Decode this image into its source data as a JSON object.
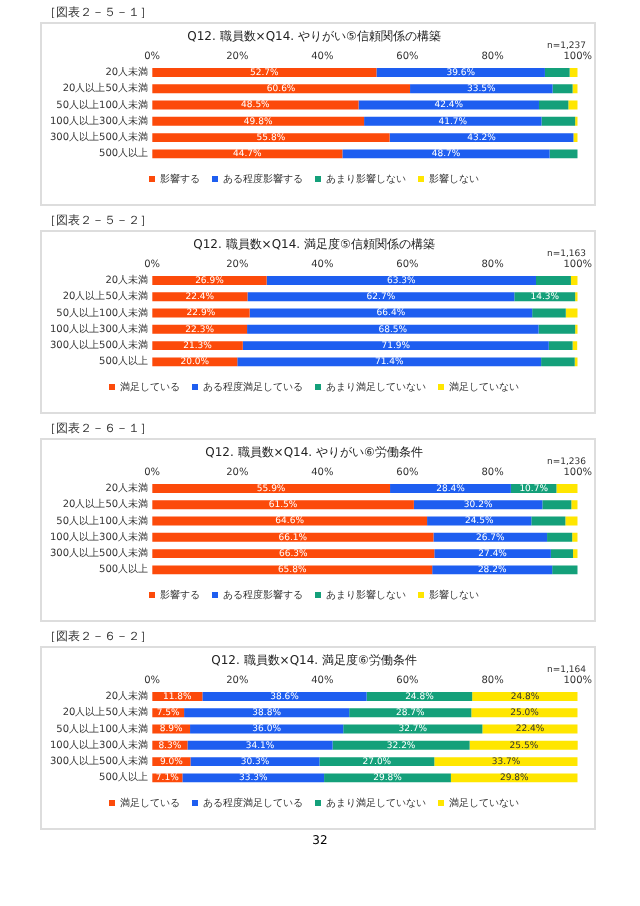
{
  "chart_data": [
    {
      "type": "bar",
      "orientation": "horizontal",
      "stacked": true,
      "title": "Q12. 職員数×Q14. やりがい⑤信頼関係の構築",
      "annotations": [
        "［図表２－５－１］",
        "n=1,237"
      ],
      "categories": [
        "20人未満",
        "20人以上50人未満",
        "50人以上100人未満",
        "100人以上300人未満",
        "300人以上500人未満",
        "500人以上"
      ],
      "xlim": [
        0,
        100
      ],
      "xticks": [
        {
          "value": 0,
          "label": "0%"
        },
        {
          "value": 20,
          "label": "20%"
        },
        {
          "value": 40,
          "label": "40%"
        },
        {
          "value": 60,
          "label": "60%"
        },
        {
          "value": 80,
          "label": "80%"
        },
        {
          "value": 100,
          "label": "100%"
        }
      ],
      "legend": "bottom",
      "series": [
        {
          "name": "影響する",
          "color": "#fc4a0a",
          "values": [
            52.7,
            60.6,
            48.5,
            49.8,
            55.8,
            44.7
          ],
          "value_labels": [
            "52.7%",
            "60.6%",
            "48.5%",
            "49.8%",
            "55.8%",
            "44.7%"
          ]
        },
        {
          "name": "ある程度影響する",
          "color": "#1e5ef0",
          "values": [
            39.6,
            33.5,
            42.4,
            41.7,
            43.2,
            48.7
          ],
          "value_labels": [
            "39.6%",
            "33.5%",
            "42.4%",
            "41.7%",
            "43.2%",
            "48.7%"
          ]
        },
        {
          "name": "あまり影響しない",
          "color": "#14a07a",
          "values": [
            5.8,
            4.7,
            6.9,
            7.9,
            0.0,
            6.6
          ],
          "value_labels": [
            null,
            null,
            null,
            null,
            null,
            null
          ]
        },
        {
          "name": "影響しない",
          "color": "#ffe600",
          "values": [
            1.9,
            1.2,
            2.2,
            0.6,
            1.0,
            0.0
          ],
          "value_labels": [
            null,
            null,
            null,
            null,
            null,
            null
          ]
        }
      ]
    },
    {
      "type": "bar",
      "orientation": "horizontal",
      "stacked": true,
      "title": "Q12. 職員数×Q14. 満足度⑤信頼関係の構築",
      "annotations": [
        "［図表２－５－２］",
        "n=1,163"
      ],
      "categories": [
        "20人未満",
        "20人以上50人未満",
        "50人以上100人未満",
        "100人以上300人未満",
        "300人以上500人未満",
        "500人以上"
      ],
      "xlim": [
        0,
        100
      ],
      "xticks": [
        {
          "value": 0,
          "label": "0%"
        },
        {
          "value": 20,
          "label": "20%"
        },
        {
          "value": 40,
          "label": "40%"
        },
        {
          "value": 60,
          "label": "60%"
        },
        {
          "value": 80,
          "label": "80%"
        },
        {
          "value": 100,
          "label": "100%"
        }
      ],
      "legend": "bottom",
      "series": [
        {
          "name": "満足している",
          "color": "#fc4a0a",
          "values": [
            26.9,
            22.4,
            22.9,
            22.3,
            21.3,
            20.0
          ],
          "value_labels": [
            "26.9%",
            "22.4%",
            "22.9%",
            "22.3%",
            "21.3%",
            "20.0%"
          ]
        },
        {
          "name": "ある程度満足している",
          "color": "#1e5ef0",
          "values": [
            63.3,
            62.7,
            66.4,
            68.5,
            71.9,
            71.4
          ],
          "value_labels": [
            "63.3%",
            "62.7%",
            "66.4%",
            "68.5%",
            "71.9%",
            "71.4%"
          ]
        },
        {
          "name": "あまり満足していない",
          "color": "#14a07a",
          "values": [
            8.2,
            14.3,
            7.9,
            8.6,
            5.6,
            7.9
          ],
          "value_labels": [
            null,
            "14.3%",
            null,
            null,
            null,
            null
          ]
        },
        {
          "name": "満足していない",
          "color": "#ffe600",
          "values": [
            1.6,
            0.6,
            2.8,
            0.6,
            1.1,
            0.7
          ],
          "value_labels": [
            null,
            null,
            null,
            null,
            null,
            null
          ]
        }
      ]
    },
    {
      "type": "bar",
      "orientation": "horizontal",
      "stacked": true,
      "title": "Q12. 職員数×Q14. やりがい⑥労働条件",
      "annotations": [
        "［図表２－６－１］",
        "n=1,236"
      ],
      "categories": [
        "20人未満",
        "20人以上50人未満",
        "50人以上100人未満",
        "100人以上300人未満",
        "300人以上500人未満",
        "500人以上"
      ],
      "xlim": [
        0,
        100
      ],
      "xticks": [
        {
          "value": 0,
          "label": "0%"
        },
        {
          "value": 20,
          "label": "20%"
        },
        {
          "value": 40,
          "label": "40%"
        },
        {
          "value": 60,
          "label": "60%"
        },
        {
          "value": 80,
          "label": "80%"
        },
        {
          "value": 100,
          "label": "100%"
        }
      ],
      "legend": "bottom",
      "series": [
        {
          "name": "影響する",
          "color": "#fc4a0a",
          "values": [
            55.9,
            61.5,
            64.6,
            66.1,
            66.3,
            65.8
          ],
          "value_labels": [
            "55.9%",
            "61.5%",
            "64.6%",
            "66.1%",
            "66.3%",
            "65.8%"
          ]
        },
        {
          "name": "ある程度影響する",
          "color": "#1e5ef0",
          "values": [
            28.4,
            30.2,
            24.5,
            26.7,
            27.4,
            28.2
          ],
          "value_labels": [
            "28.4%",
            "30.2%",
            "24.5%",
            "26.7%",
            "27.4%",
            "28.2%"
          ]
        },
        {
          "name": "あまり影響しない",
          "color": "#14a07a",
          "values": [
            10.7,
            6.8,
            8.0,
            5.9,
            5.2,
            6.0
          ],
          "value_labels": [
            "10.7%",
            null,
            null,
            null,
            null,
            null
          ]
        },
        {
          "name": "影響しない",
          "color": "#ffe600",
          "values": [
            5.0,
            1.5,
            2.9,
            1.3,
            1.1,
            0.0
          ],
          "value_labels": [
            null,
            null,
            null,
            null,
            null,
            null
          ]
        }
      ]
    },
    {
      "type": "bar",
      "orientation": "horizontal",
      "stacked": true,
      "title": "Q12. 職員数×Q14. 満足度⑥労働条件",
      "annotations": [
        "［図表２－６－２］",
        "n=1,164",
        "32"
      ],
      "categories": [
        "20人未満",
        "20人以上50人未満",
        "50人以上100人未満",
        "100人以上300人未満",
        "300人以上500人未満",
        "500人以上"
      ],
      "xlim": [
        0,
        100
      ],
      "xticks": [
        {
          "value": 0,
          "label": "0%"
        },
        {
          "value": 20,
          "label": "20%"
        },
        {
          "value": 40,
          "label": "40%"
        },
        {
          "value": 60,
          "label": "60%"
        },
        {
          "value": 80,
          "label": "80%"
        },
        {
          "value": 100,
          "label": "100%"
        }
      ],
      "legend": "bottom",
      "series": [
        {
          "name": "満足している",
          "color": "#fc4a0a",
          "values": [
            11.8,
            7.5,
            8.9,
            8.3,
            9.0,
            7.1
          ],
          "value_labels": [
            "11.8%",
            "7.5%",
            "8.9%",
            "8.3%",
            "9.0%",
            "7.1%"
          ]
        },
        {
          "name": "ある程度満足している",
          "color": "#1e5ef0",
          "values": [
            38.6,
            38.8,
            36.0,
            34.1,
            30.3,
            33.3
          ],
          "value_labels": [
            "38.6%",
            "38.8%",
            "36.0%",
            "34.1%",
            "30.3%",
            "33.3%"
          ]
        },
        {
          "name": "あまり満足していない",
          "color": "#14a07a",
          "values": [
            24.8,
            28.7,
            32.7,
            32.2,
            27.0,
            29.8
          ],
          "value_labels": [
            "24.8%",
            "28.7%",
            "32.7%",
            "32.2%",
            "27.0%",
            "29.8%"
          ]
        },
        {
          "name": "満足していない",
          "color": "#ffe600",
          "values": [
            24.8,
            25.0,
            22.4,
            25.5,
            33.7,
            29.8
          ],
          "value_labels": [
            "24.8%",
            "25.0%",
            "22.4%",
            "25.5%",
            "33.7%",
            "29.8%"
          ]
        }
      ]
    }
  ]
}
